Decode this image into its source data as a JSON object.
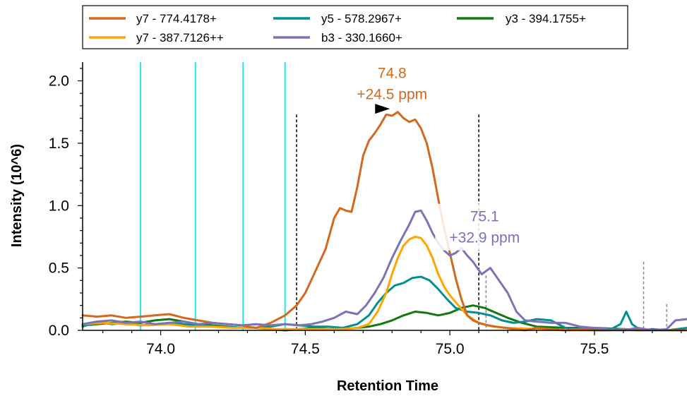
{
  "chart_data": {
    "type": "line",
    "xlabel": "Retention Time",
    "ylabel": "Intensity (10^6)",
    "xlim": [
      73.73,
      75.82
    ],
    "ylim": [
      0,
      2.15
    ],
    "x_ticks": [
      {
        "value": 74.0,
        "label": "74.0"
      },
      {
        "value": 74.5,
        "label": "74.5"
      },
      {
        "value": 75.0,
        "label": "75.0"
      },
      {
        "value": 75.5,
        "label": "75.5"
      }
    ],
    "y_ticks": [
      {
        "value": 0.0,
        "label": "0.0"
      },
      {
        "value": 0.5,
        "label": "0.5"
      },
      {
        "value": 1.0,
        "label": "1.0"
      },
      {
        "value": 1.5,
        "label": "1.5"
      },
      {
        "value": 2.0,
        "label": "2.0"
      }
    ],
    "legend": {
      "position": "top"
    },
    "series": [
      {
        "name": "y7 - 774.4178+",
        "color": "#D2691E",
        "x": [
          73.73,
          73.78,
          73.83,
          73.88,
          73.93,
          73.98,
          74.03,
          74.08,
          74.13,
          74.18,
          74.23,
          74.28,
          74.3,
          74.33,
          74.38,
          74.43,
          74.47,
          74.5,
          74.53,
          74.57,
          74.6,
          74.62,
          74.64,
          74.66,
          74.68,
          74.7,
          74.72,
          74.74,
          74.76,
          74.78,
          74.8,
          74.82,
          74.84,
          74.86,
          74.88,
          74.9,
          74.92,
          74.94,
          74.96,
          74.98,
          75.0,
          75.02,
          75.04,
          75.06,
          75.08,
          75.1,
          75.13,
          75.16,
          75.19,
          75.22,
          75.26,
          75.3,
          75.35,
          75.4,
          75.45,
          75.5,
          75.55,
          75.6,
          75.65,
          75.7,
          75.75,
          75.82
        ],
        "y": [
          0.12,
          0.11,
          0.12,
          0.1,
          0.11,
          0.12,
          0.13,
          0.1,
          0.08,
          0.06,
          0.05,
          0.04,
          0.03,
          0.02,
          0.06,
          0.12,
          0.2,
          0.3,
          0.45,
          0.65,
          0.9,
          0.98,
          0.96,
          0.95,
          1.15,
          1.4,
          1.52,
          1.58,
          1.65,
          1.73,
          1.72,
          1.75,
          1.7,
          1.67,
          1.69,
          1.62,
          1.5,
          1.3,
          1.05,
          0.82,
          0.62,
          0.42,
          0.25,
          0.12,
          0.08,
          0.06,
          0.04,
          0.03,
          0.02,
          0.01,
          0.0,
          0.02,
          0.01,
          0.0,
          0.01,
          0.0,
          0.0,
          0.01,
          0.0,
          0.0,
          0.0,
          0.0
        ]
      },
      {
        "name": "y7 - 387.7126++",
        "color": "#FFA500",
        "x": [
          73.73,
          73.8,
          73.88,
          73.95,
          74.03,
          74.1,
          74.18,
          74.25,
          74.33,
          74.4,
          74.48,
          74.55,
          74.63,
          74.68,
          74.72,
          74.75,
          74.78,
          74.8,
          74.82,
          74.84,
          74.86,
          74.88,
          74.9,
          74.92,
          74.94,
          74.96,
          74.98,
          75.0,
          75.03,
          75.06,
          75.1,
          75.15,
          75.2,
          75.3,
          75.4,
          75.5,
          75.6,
          75.7,
          75.82
        ],
        "y": [
          0.05,
          0.06,
          0.05,
          0.04,
          0.05,
          0.03,
          0.03,
          0.02,
          0.02,
          0.01,
          0.01,
          0.01,
          0.01,
          0.02,
          0.05,
          0.15,
          0.3,
          0.45,
          0.58,
          0.68,
          0.73,
          0.75,
          0.74,
          0.68,
          0.58,
          0.45,
          0.35,
          0.28,
          0.2,
          0.12,
          0.06,
          0.03,
          0.02,
          0.01,
          0.0,
          0.0,
          0.0,
          0.0,
          0.0
        ]
      },
      {
        "name": "y5 - 578.2967+",
        "color": "#009090",
        "x": [
          73.73,
          73.78,
          73.83,
          73.88,
          73.93,
          73.98,
          74.03,
          74.08,
          74.13,
          74.18,
          74.23,
          74.28,
          74.33,
          74.38,
          74.43,
          74.48,
          74.53,
          74.58,
          74.63,
          74.68,
          74.72,
          74.75,
          74.78,
          74.81,
          74.84,
          74.87,
          74.9,
          74.93,
          74.96,
          74.99,
          75.02,
          75.06,
          75.1,
          75.14,
          75.18,
          75.22,
          75.26,
          75.3,
          75.35,
          75.4,
          75.45,
          75.5,
          75.55,
          75.59,
          75.61,
          75.63,
          75.66,
          75.7,
          75.75,
          75.82
        ],
        "y": [
          0.03,
          0.07,
          0.05,
          0.06,
          0.04,
          0.05,
          0.06,
          0.05,
          0.04,
          0.03,
          0.03,
          0.02,
          0.02,
          0.03,
          0.05,
          0.04,
          0.03,
          0.03,
          0.02,
          0.05,
          0.12,
          0.22,
          0.3,
          0.36,
          0.38,
          0.42,
          0.43,
          0.4,
          0.33,
          0.25,
          0.18,
          0.15,
          0.14,
          0.12,
          0.08,
          0.06,
          0.07,
          0.09,
          0.08,
          0.02,
          0.01,
          0.01,
          0.0,
          0.05,
          0.15,
          0.05,
          0.0,
          0.01,
          0.0,
          0.02
        ]
      },
      {
        "name": "b3 - 330.1660+",
        "color": "#7B72B8",
        "x": [
          73.73,
          73.78,
          73.83,
          73.88,
          73.93,
          73.98,
          74.03,
          74.08,
          74.13,
          74.18,
          74.23,
          74.28,
          74.33,
          74.38,
          74.43,
          74.48,
          74.52,
          74.56,
          74.6,
          74.64,
          74.68,
          74.71,
          74.74,
          74.77,
          74.8,
          74.83,
          74.86,
          74.88,
          74.9,
          74.92,
          74.94,
          74.96,
          74.98,
          75.0,
          75.02,
          75.04,
          75.06,
          75.08,
          75.11,
          75.14,
          75.17,
          75.2,
          75.23,
          75.26,
          75.3,
          75.35,
          75.4,
          75.45,
          75.5,
          75.55,
          75.6,
          75.65,
          75.7,
          75.75,
          75.78,
          75.82
        ],
        "y": [
          0.05,
          0.07,
          0.08,
          0.06,
          0.07,
          0.05,
          0.06,
          0.07,
          0.05,
          0.06,
          0.05,
          0.04,
          0.05,
          0.04,
          0.05,
          0.04,
          0.05,
          0.07,
          0.1,
          0.15,
          0.13,
          0.2,
          0.3,
          0.42,
          0.58,
          0.72,
          0.85,
          0.95,
          0.96,
          0.88,
          0.78,
          0.7,
          0.64,
          0.6,
          0.62,
          0.66,
          0.6,
          0.55,
          0.45,
          0.5,
          0.4,
          0.3,
          0.15,
          0.08,
          0.07,
          0.06,
          0.06,
          0.03,
          0.02,
          0.01,
          0.0,
          0.02,
          0.0,
          0.01,
          0.08,
          0.09
        ]
      },
      {
        "name": "y3 - 394.1755+",
        "color": "#107A10",
        "x": [
          73.73,
          73.78,
          73.83,
          73.88,
          73.93,
          73.98,
          74.03,
          74.08,
          74.13,
          74.18,
          74.23,
          74.28,
          74.33,
          74.38,
          74.43,
          74.48,
          74.53,
          74.58,
          74.63,
          74.68,
          74.72,
          74.76,
          74.8,
          74.84,
          74.88,
          74.92,
          74.96,
          75.0,
          75.04,
          75.08,
          75.12,
          75.16,
          75.2,
          75.25,
          75.3,
          75.4,
          75.5,
          75.6,
          75.7,
          75.82
        ],
        "y": [
          0.04,
          0.05,
          0.06,
          0.07,
          0.06,
          0.08,
          0.09,
          0.07,
          0.05,
          0.04,
          0.03,
          0.02,
          0.02,
          0.01,
          0.0,
          0.01,
          0.02,
          0.01,
          0.01,
          0.02,
          0.03,
          0.05,
          0.08,
          0.12,
          0.15,
          0.14,
          0.12,
          0.14,
          0.18,
          0.2,
          0.18,
          0.14,
          0.1,
          0.06,
          0.03,
          0.02,
          0.02,
          0.01,
          0.0,
          0.0
        ]
      }
    ],
    "cyan_lines_x": [
      73.93,
      74.12,
      74.285,
      74.43
    ],
    "black_dashed_x": [
      74.47,
      75.1
    ],
    "grey_dashed": [
      {
        "x": 75.125,
        "y": 0.44
      },
      {
        "x": 75.67,
        "y": 0.55
      },
      {
        "x": 75.75,
        "y": 0.21
      }
    ],
    "annotations": [
      {
        "line1": "74.8",
        "line2": "+24.5 ppm",
        "color": "#D2691E",
        "x": 74.8,
        "y": 1.87
      },
      {
        "line1": "75.1",
        "line2": "+32.9 ppm",
        "color": "#7B72B8",
        "x": 75.12,
        "y": 0.72
      }
    ],
    "marker": {
      "x": 74.8,
      "y": 1.77
    }
  }
}
